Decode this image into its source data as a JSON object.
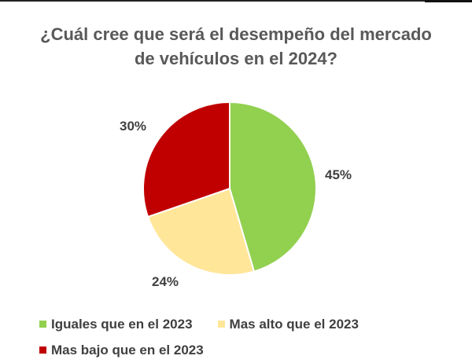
{
  "chart_data": {
    "type": "pie",
    "title": "¿Cuál cree que será el desempeño del mercado de vehículos en el 2024?",
    "title_lines": [
      "¿Cuál cree que será el desempeño del mercado",
      "de vehículos en el 2024?"
    ],
    "categories": [
      "Iguales que en el 2023",
      "Mas alto que el 2023",
      "Mas bajo que en el 2023"
    ],
    "values": [
      45,
      24,
      30
    ],
    "labels": [
      "45%",
      "24%",
      "30%"
    ],
    "colors": [
      "#92D050",
      "#FFE699",
      "#C00000"
    ],
    "start_angle": "12 o'clock, clockwise",
    "legend_position": "bottom"
  },
  "legend": {
    "items": [
      {
        "label": "Iguales que en el 2023",
        "color": "#92D050"
      },
      {
        "label": "Mas alto que el 2023",
        "color": "#FFE699"
      },
      {
        "label": "Mas bajo que en el 2023",
        "color": "#C00000"
      }
    ]
  }
}
